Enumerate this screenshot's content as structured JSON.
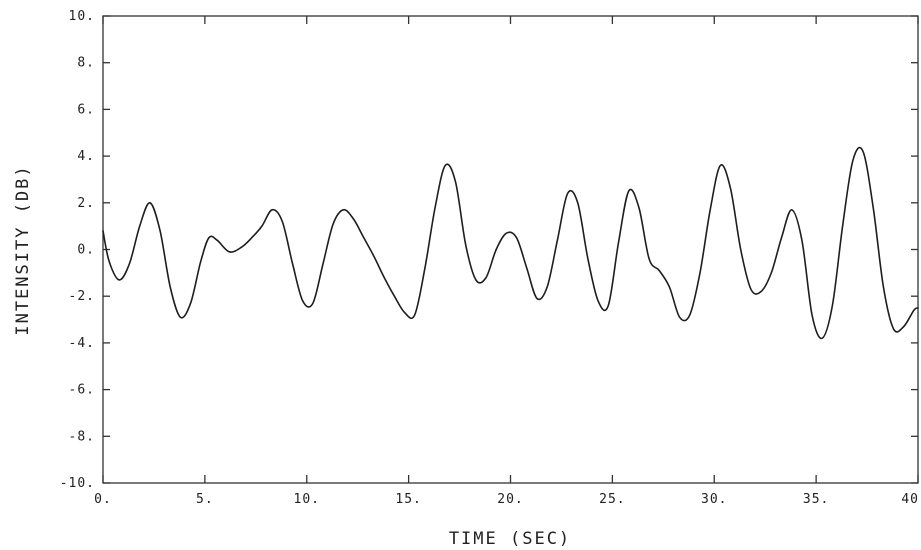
{
  "chart_data": {
    "type": "line",
    "title": "",
    "xlabel": "TIME (SEC)",
    "ylabel": "INTENSITY (DB)",
    "xlim": [
      0,
      40
    ],
    "ylim": [
      -10,
      10
    ],
    "grid": false,
    "x_ticks": [
      0,
      5,
      10,
      15,
      20,
      25,
      30,
      35,
      40
    ],
    "x_tick_labels": [
      "0.",
      "5.",
      "10.",
      "15.",
      "20.",
      "25.",
      "30.",
      "35.",
      "40"
    ],
    "y_ticks": [
      10,
      8,
      6,
      4,
      2,
      0,
      -2,
      -4,
      -6,
      -8,
      -10
    ],
    "y_tick_labels": [
      "10.",
      "8.",
      "6.",
      "4.",
      "2.",
      "0.",
      "-2.",
      "-4.",
      "-6.",
      "-8.",
      "-10."
    ],
    "series": [
      {
        "color": "#1e1e1e",
        "x": [
          0,
          0.3,
          0.8,
          1.3,
          1.8,
          2.3,
          2.8,
          3.3,
          3.8,
          4.3,
          4.8,
          5.2,
          5.6,
          6.2,
          6.8,
          7.3,
          7.8,
          8.3,
          8.8,
          9.3,
          9.8,
          10.3,
          10.8,
          11.3,
          11.8,
          12.3,
          12.8,
          13.3,
          13.8,
          14.3,
          14.8,
          15.3,
          15.8,
          16.3,
          16.8,
          17.3,
          17.8,
          18.3,
          18.8,
          19.3,
          19.8,
          20.3,
          20.8,
          21.3,
          21.8,
          22.3,
          22.8,
          23.3,
          23.8,
          24.3,
          24.8,
          25.3,
          25.8,
          26.3,
          26.8,
          27.3,
          27.8,
          28.3,
          28.8,
          29.3,
          29.8,
          30.3,
          30.8,
          31.3,
          31.8,
          32.3,
          32.8,
          33.3,
          33.8,
          34.3,
          34.8,
          35.3,
          35.8,
          36.3,
          36.8,
          37.3,
          37.8,
          38.3,
          38.8,
          39.3,
          39.8,
          40
        ],
        "y": [
          0.8,
          -0.5,
          -1.3,
          -0.6,
          1.0,
          2.0,
          0.8,
          -1.6,
          -2.9,
          -2.3,
          -0.5,
          0.5,
          0.4,
          -0.1,
          0.1,
          0.5,
          1.0,
          1.7,
          1.2,
          -0.6,
          -2.2,
          -2.3,
          -0.6,
          1.1,
          1.7,
          1.3,
          0.5,
          -0.3,
          -1.2,
          -2.0,
          -2.7,
          -2.8,
          -0.8,
          1.8,
          3.6,
          2.9,
          0.2,
          -1.3,
          -1.2,
          0.0,
          0.7,
          0.5,
          -0.8,
          -2.1,
          -1.6,
          0.4,
          2.4,
          2.0,
          -0.4,
          -2.2,
          -2.4,
          0.3,
          2.5,
          1.8,
          -0.4,
          -0.9,
          -1.6,
          -2.9,
          -2.8,
          -1.0,
          1.7,
          3.6,
          2.6,
          0.0,
          -1.7,
          -1.8,
          -1.0,
          0.5,
          1.7,
          0.4,
          -2.8,
          -3.8,
          -2.4,
          1.0,
          3.8,
          4.2,
          1.8,
          -1.6,
          -3.4,
          -3.3,
          -2.6,
          -2.5
        ]
      }
    ]
  }
}
